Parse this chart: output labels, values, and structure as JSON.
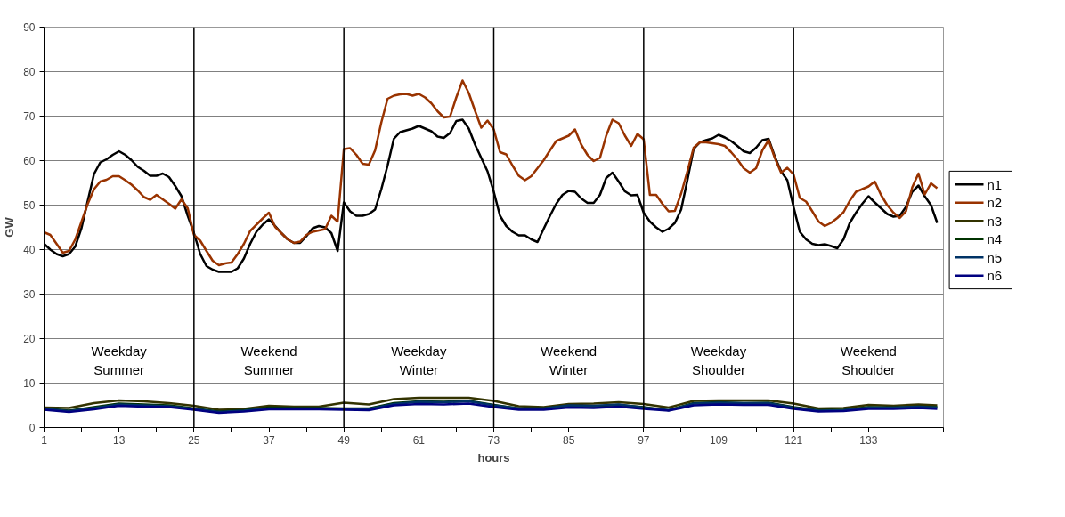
{
  "chart_data": {
    "type": "line",
    "xlabel": "hours",
    "ylabel": "GW",
    "xlim": [
      1,
      145
    ],
    "ylim": [
      0,
      90
    ],
    "xticks": [
      1,
      {
        "value": 7,
        "label": null
      },
      13,
      {
        "value": 19,
        "label": null
      },
      25,
      {
        "value": 31,
        "label": null
      },
      37,
      {
        "value": 43,
        "label": null
      },
      49,
      {
        "value": 55,
        "label": null
      },
      61,
      {
        "value": 67,
        "label": null
      },
      73,
      {
        "value": 79,
        "label": null
      },
      85,
      {
        "value": 91,
        "label": null
      },
      97,
      {
        "value": 103,
        "label": null
      },
      109,
      {
        "value": 115,
        "label": null
      },
      121,
      {
        "value": 127,
        "label": null
      },
      133,
      {
        "value": 139,
        "label": null
      },
      {
        "value": 145,
        "label": null
      }
    ],
    "yticks": [
      0,
      10,
      20,
      30,
      40,
      50,
      60,
      70,
      80,
      90
    ],
    "grid": "y",
    "legend": "right",
    "line_style": "solid",
    "x": [
      1,
      2,
      3,
      4,
      5,
      6,
      7,
      8,
      9,
      10,
      11,
      12,
      13,
      14,
      15,
      16,
      17,
      18,
      19,
      20,
      21,
      22,
      23,
      24,
      25,
      26,
      27,
      28,
      29,
      30,
      31,
      32,
      33,
      34,
      35,
      36,
      37,
      38,
      39,
      40,
      41,
      42,
      43,
      44,
      45,
      46,
      47,
      48,
      49,
      50,
      51,
      52,
      53,
      54,
      55,
      56,
      57,
      58,
      59,
      60,
      61,
      62,
      63,
      64,
      65,
      66,
      67,
      68,
      69,
      70,
      71,
      72,
      73,
      74,
      75,
      76,
      77,
      78,
      79,
      80,
      81,
      82,
      83,
      84,
      85,
      86,
      87,
      88,
      89,
      90,
      91,
      92,
      93,
      94,
      95,
      96,
      97,
      98,
      99,
      100,
      101,
      102,
      103,
      104,
      105,
      106,
      107,
      108,
      109,
      110,
      111,
      112,
      113,
      114,
      115,
      116,
      117,
      118,
      119,
      120,
      121,
      122,
      123,
      124,
      125,
      126,
      127,
      128,
      129,
      130,
      131,
      132,
      133,
      134,
      135,
      136,
      137,
      138,
      139,
      140,
      141,
      142,
      143,
      144
    ],
    "series": [
      {
        "name": "n1",
        "color": "#000000",
        "values": [
          41.3,
          40,
          39.0,
          38.5,
          39,
          40.7,
          44.9,
          51,
          57,
          59.6,
          60.3,
          61.3,
          62.1,
          61.3,
          60.1,
          58.6,
          57.7,
          56.6,
          56.6,
          57.1,
          56.3,
          54.3,
          52,
          47.6,
          43.7,
          39,
          36.3,
          35.5,
          35,
          35,
          35,
          35.8,
          38,
          41.3,
          44,
          45.6,
          46.8,
          45.3,
          43.7,
          42.3,
          41.5,
          41.5,
          43,
          44.8,
          45.3,
          45,
          43.7,
          39.7,
          50.6,
          48.6,
          47.6,
          47.6,
          48,
          49,
          53.6,
          58.9,
          64.9,
          66.4,
          66.8,
          67.2,
          67.8,
          67.2,
          66.6,
          65.4,
          65.1,
          66.2,
          68.9,
          69.2,
          67.2,
          63.6,
          60.6,
          57.6,
          53,
          47.6,
          45.3,
          44,
          43.2,
          43.2,
          42.3,
          41.7,
          44.7,
          47.6,
          50.3,
          52.3,
          53.2,
          53,
          51.5,
          50.5,
          50.5,
          52.3,
          56.1,
          57.3,
          55.3,
          53.1,
          52.2,
          52.3,
          48.3,
          46.3,
          45,
          44,
          44.7,
          46,
          49,
          55.6,
          62.6,
          64.1,
          64.6,
          65,
          65.8,
          65.2,
          64.4,
          63.3,
          62.1,
          61.7,
          62.9,
          64.6,
          64.9,
          60.9,
          57.6,
          55.6,
          49.6,
          44,
          42.3,
          41.3,
          41,
          41.2,
          40.8,
          40.3,
          42.3,
          46,
          48.3,
          50.3,
          52,
          50.6,
          49.3,
          48,
          47.4,
          47.6,
          49.6,
          53,
          54.4,
          52,
          50,
          46
        ]
      },
      {
        "name": "n2",
        "color": "#993300",
        "values": [
          43.9,
          43.3,
          41.3,
          39.3,
          39.7,
          42.3,
          46.3,
          50.3,
          53.6,
          55.3,
          55.7,
          56.5,
          56.5,
          55.6,
          54.6,
          53.3,
          51.8,
          51.2,
          52.3,
          51.3,
          50.3,
          49.2,
          51.3,
          49.3,
          43.3,
          42,
          39.7,
          37.5,
          36.5,
          36.9,
          37.1,
          39,
          41.3,
          44.2,
          45.6,
          47,
          48.3,
          45.1,
          43.7,
          42.3,
          41.5,
          41.8,
          43.3,
          44,
          44.3,
          44.6,
          47.6,
          46.3,
          62.6,
          62.8,
          61.3,
          59.3,
          59.1,
          62.3,
          68.6,
          73.9,
          74.6,
          74.9,
          75,
          74.6,
          75,
          74.2,
          72.9,
          71.1,
          69.7,
          69.9,
          74.2,
          78,
          75.2,
          71.2,
          67.4,
          69,
          67,
          61.9,
          61.4,
          58.9,
          56.6,
          55.6,
          56.5,
          58.3,
          60.1,
          62.3,
          64.4,
          65,
          65.6,
          67,
          63.6,
          61.3,
          59.9,
          60.6,
          65.6,
          69.2,
          68.4,
          65.6,
          63.3,
          66,
          64.8,
          52.3,
          52.3,
          50.3,
          48.6,
          48.7,
          52.6,
          57.6,
          62.9,
          64.1,
          64.1,
          63.9,
          63.7,
          63.3,
          61.9,
          60.3,
          58.3,
          57.3,
          58.3,
          62.3,
          64.6,
          60.6,
          57.3,
          58.4,
          56.9,
          51.6,
          50.8,
          48.6,
          46.3,
          45.3,
          46,
          47.1,
          48.4,
          51,
          53,
          53.6,
          54.2,
          55.3,
          52.3,
          50,
          48.3,
          47.1,
          48.6,
          54,
          57.1,
          52.4,
          54.9,
          53.8
        ]
      },
      {
        "name": "n3",
        "color": "#333300",
        "x": [
          1,
          5,
          9,
          13,
          17,
          21,
          25,
          29,
          33,
          37,
          41,
          45,
          49,
          53,
          57,
          61,
          65,
          69,
          73,
          77,
          81,
          85,
          89,
          93,
          97,
          101,
          105,
          109,
          113,
          117,
          121,
          125,
          129,
          133,
          137,
          141,
          144
        ],
        "values": [
          4.5,
          4.4,
          5.5,
          6.1,
          5.9,
          5.5,
          4.9,
          4.0,
          4.2,
          4.9,
          4.7,
          4.7,
          5.6,
          5.2,
          6.4,
          6.7,
          6.7,
          6.7,
          6.0,
          4.8,
          4.6,
          5.3,
          5.4,
          5.7,
          5.3,
          4.5,
          6.0,
          6.1,
          6.1,
          6.1,
          5.4,
          4.3,
          4.4,
          5.1,
          4.9,
          5.2,
          5.0
        ]
      },
      {
        "name": "n4",
        "color": "#003300",
        "x": [
          1,
          5,
          9,
          13,
          17,
          21,
          25,
          29,
          33,
          37,
          41,
          45,
          49,
          53,
          57,
          61,
          65,
          69,
          73,
          77,
          81,
          85,
          89,
          93,
          97,
          101,
          105,
          109,
          113,
          117,
          121,
          125,
          129,
          133,
          137,
          141,
          144
        ],
        "values": [
          4.3,
          3.8,
          4.6,
          5.4,
          5.2,
          5.0,
          4.3,
          3.6,
          3.9,
          4.5,
          4.4,
          4.4,
          4.3,
          4.3,
          5.5,
          5.9,
          5.8,
          6.0,
          5.1,
          4.3,
          4.3,
          4.9,
          4.8,
          5.1,
          4.6,
          3.9,
          5.5,
          5.7,
          5.5,
          5.6,
          4.6,
          3.9,
          4.0,
          4.6,
          4.5,
          4.7,
          4.6
        ]
      },
      {
        "name": "n5",
        "color": "#003366",
        "x": [
          1,
          5,
          9,
          13,
          17,
          21,
          25,
          29,
          33,
          37,
          41,
          45,
          49,
          53,
          57,
          61,
          65,
          69,
          73,
          77,
          81,
          85,
          89,
          93,
          97,
          101,
          105,
          109,
          113,
          117,
          121,
          125,
          129,
          133,
          137,
          141,
          144
        ],
        "values": [
          4.2,
          3.7,
          4.4,
          5.2,
          5.0,
          4.8,
          4.2,
          3.5,
          3.8,
          4.3,
          4.3,
          4.3,
          4.2,
          4.2,
          5.3,
          5.8,
          5.7,
          5.9,
          5.0,
          4.3,
          4.3,
          5.0,
          4.9,
          5.2,
          4.5,
          3.9,
          5.4,
          5.6,
          5.5,
          5.5,
          4.5,
          3.8,
          3.9,
          4.5,
          4.5,
          4.7,
          4.5
        ]
      },
      {
        "name": "n6",
        "color": "#000080",
        "x": [
          1,
          5,
          9,
          13,
          17,
          21,
          25,
          29,
          33,
          37,
          41,
          45,
          49,
          53,
          57,
          61,
          65,
          69,
          73,
          77,
          81,
          85,
          89,
          93,
          97,
          101,
          105,
          109,
          113,
          117,
          121,
          125,
          129,
          133,
          137,
          141,
          144
        ],
        "values": [
          4.0,
          3.5,
          4.1,
          4.9,
          4.7,
          4.6,
          4.0,
          3.3,
          3.6,
          4.1,
          4.1,
          4.1,
          4.0,
          3.9,
          5.0,
          5.3,
          5.2,
          5.4,
          4.6,
          4.0,
          4.0,
          4.5,
          4.4,
          4.7,
          4.2,
          3.8,
          5.0,
          5.2,
          5.1,
          5.1,
          4.2,
          3.6,
          3.7,
          4.2,
          4.2,
          4.4,
          4.2
        ]
      }
    ],
    "ref_lines": [
      {
        "axis": "x",
        "value": 25,
        "color": "#000000"
      },
      {
        "axis": "x",
        "value": 49,
        "color": "#000000"
      },
      {
        "axis": "x",
        "value": 73,
        "color": "#000000"
      },
      {
        "axis": "x",
        "value": 97,
        "color": "#000000"
      },
      {
        "axis": "x",
        "value": 121,
        "color": "#000000"
      }
    ],
    "annotations": [
      "Weekday\nSummer",
      "Weekend\nSummer",
      "Weekday\nWinter",
      "Weekend\nWinter",
      "Weekday\nShoulder",
      "Weekend\nShoulder"
    ]
  }
}
